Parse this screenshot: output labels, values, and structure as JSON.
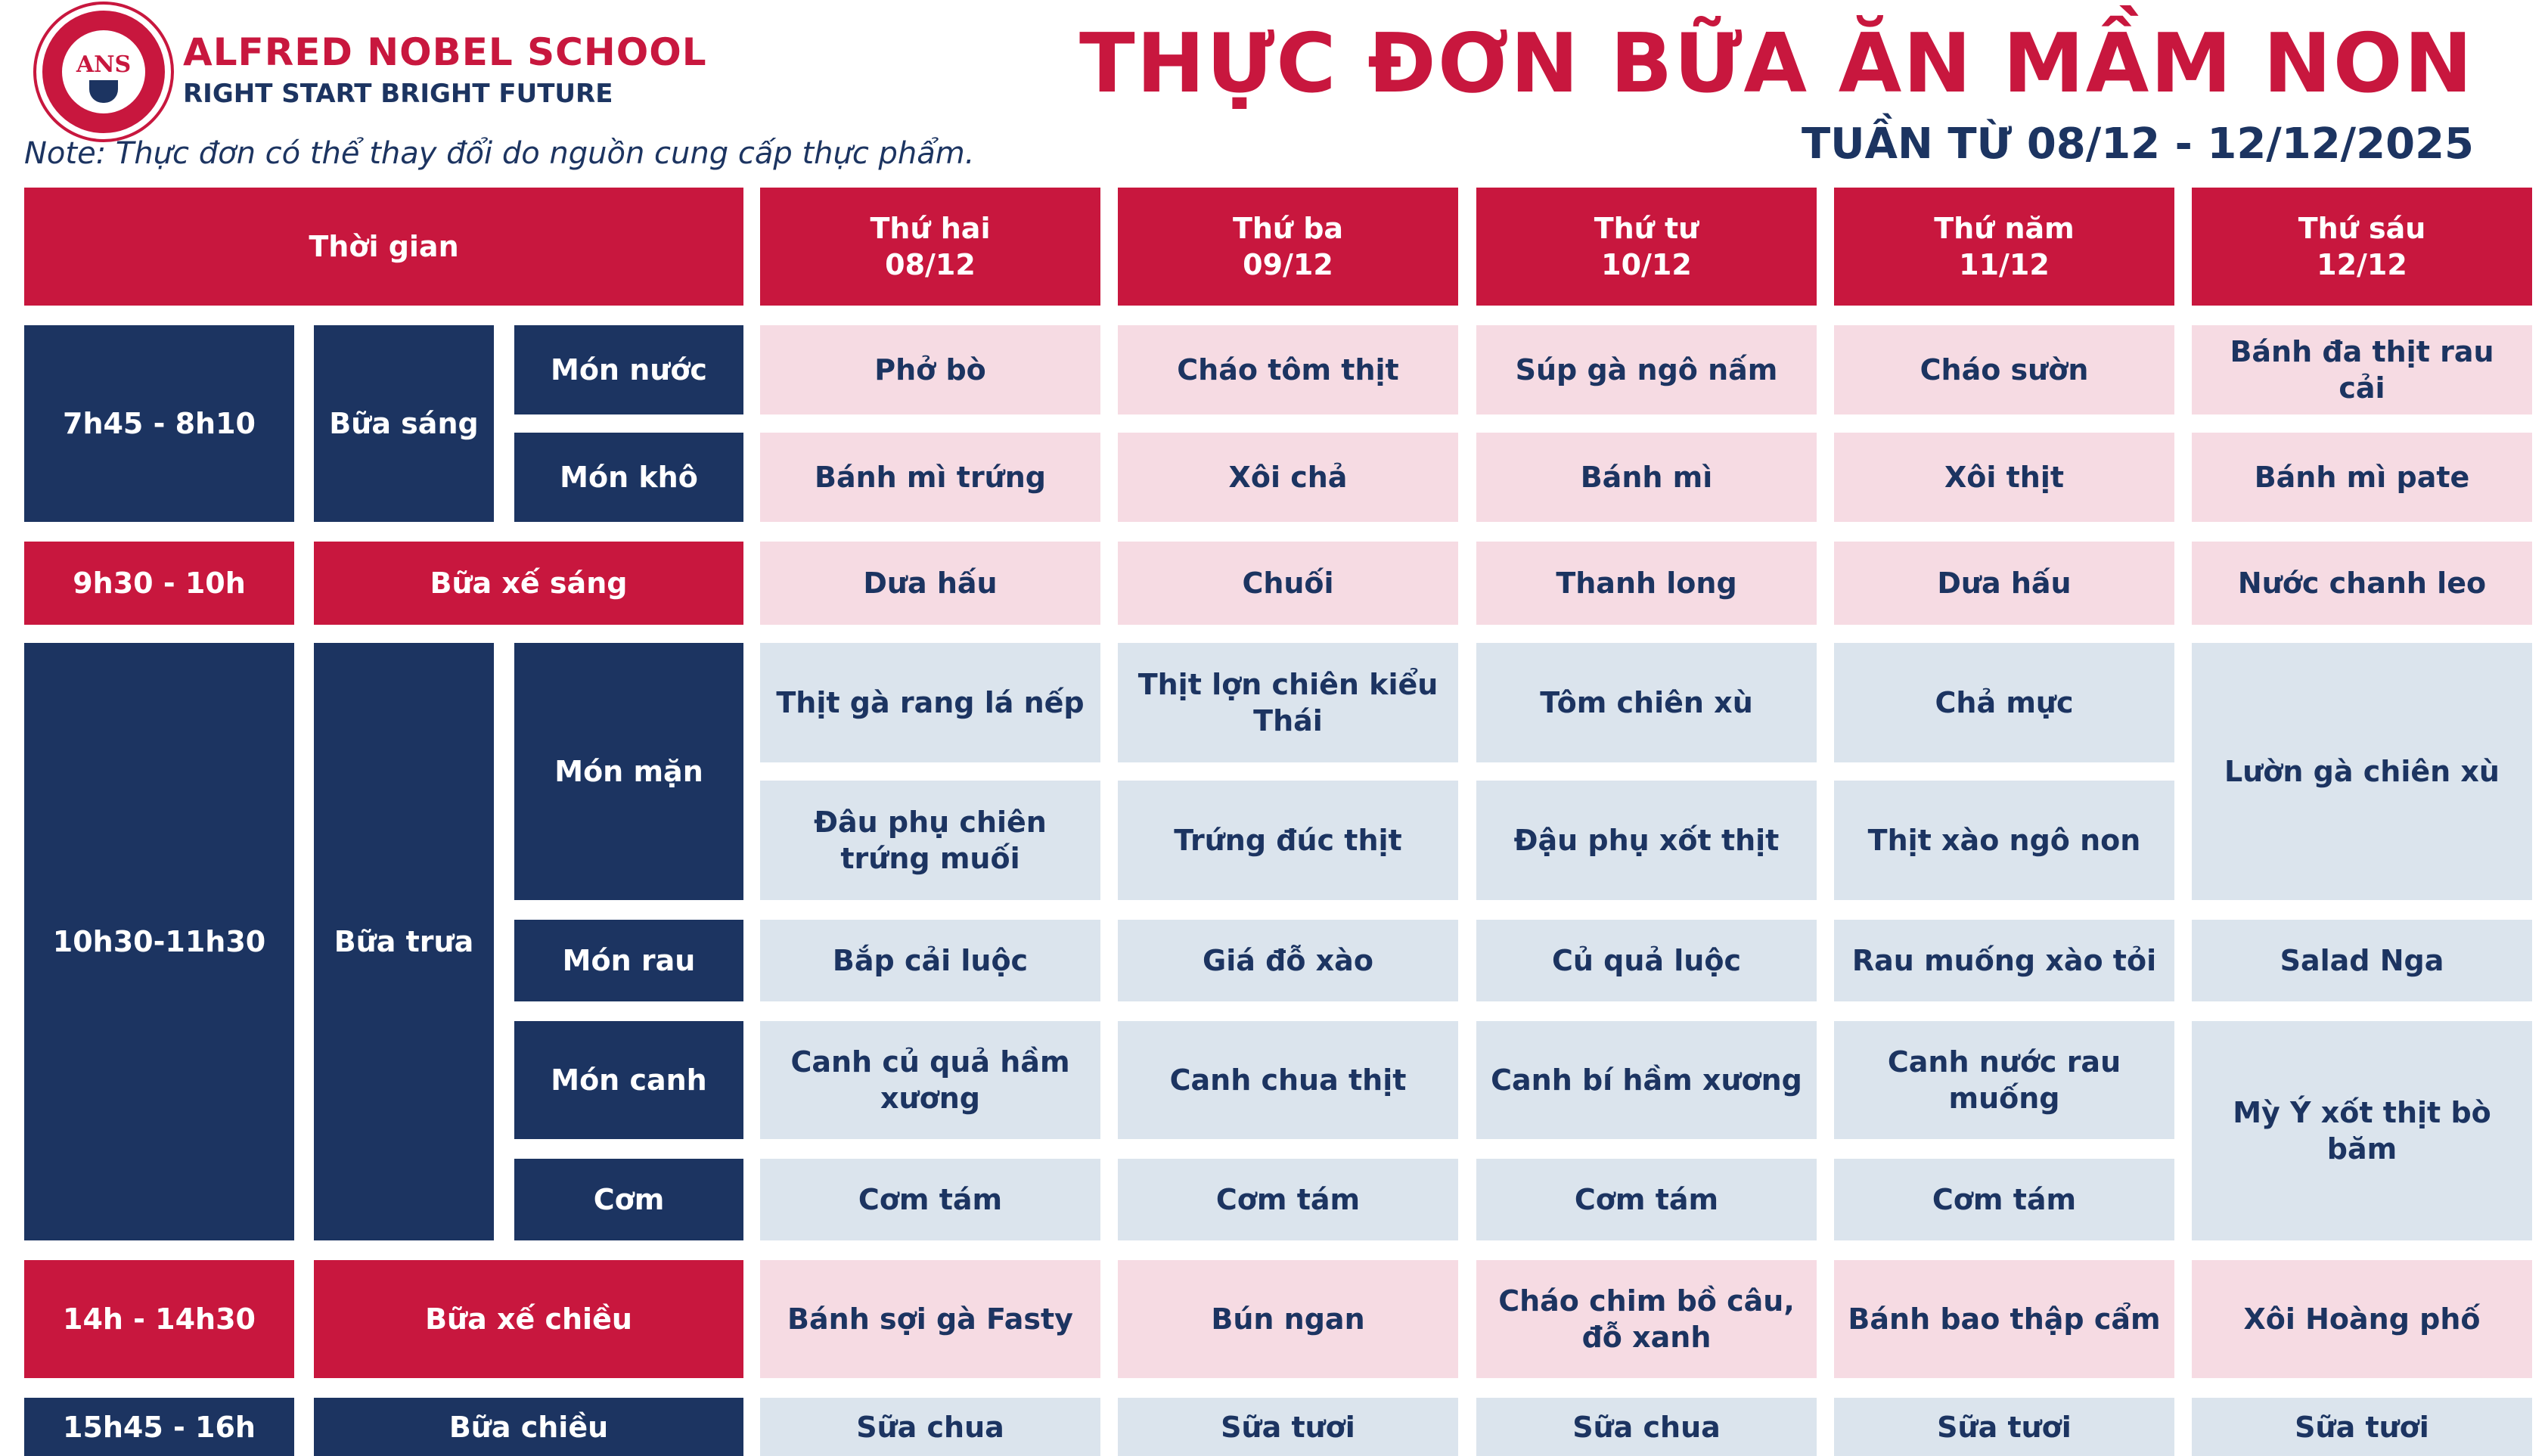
{
  "header": {
    "logo_text": "ANS",
    "school_name": "ALFRED NOBEL SCHOOL",
    "slogan": "RIGHT START  BRIGHT FUTURE",
    "note": "Note: Thực đơn có thể thay đổi do nguồn cung cấp thực phẩm.",
    "title": "THỰC ĐƠN BỮA ĂN MẦM NON",
    "week": "TUẦN TỪ 08/12 - 12/12/2025"
  },
  "table": {
    "time_header": "Thời gian",
    "days": [
      {
        "name": "Thứ hai",
        "date": "08/12"
      },
      {
        "name": "Thứ ba",
        "date": "09/12"
      },
      {
        "name": "Thứ tư",
        "date": "10/12"
      },
      {
        "name": "Thứ năm",
        "date": "11/12"
      },
      {
        "name": "Thứ sáu",
        "date": "12/12"
      }
    ],
    "times": [
      "7h45 - 8h10",
      "9h30 - 10h",
      "10h30-11h30",
      "14h - 14h30",
      "15h45 - 16h"
    ],
    "meals": [
      "Bữa sáng",
      "Bữa xế sáng",
      "Bữa trưa",
      "Bữa xế chiều",
      "Bữa chiều"
    ],
    "dish_types": [
      "Món nước",
      "Món khô",
      "Món mặn",
      "Món rau",
      "Món canh",
      "Cơm"
    ],
    "menu": {
      "mon_nuoc": [
        "Phở bò",
        "Cháo tôm thịt",
        "Súp gà ngô nấm",
        "Cháo sườn",
        "Bánh đa thịt rau cải"
      ],
      "mon_kho": [
        "Bánh mì trứng",
        "Xôi chả",
        "Bánh mì",
        "Xôi thịt",
        "Bánh mì pate"
      ],
      "xe_sang": [
        "Dưa hấu",
        "Chuối",
        "Thanh long",
        "Dưa hấu",
        "Nước chanh leo"
      ],
      "mon_man_1": [
        "Thịt gà rang lá nếp",
        "Thịt lợn chiên kiểu Thái",
        "Tôm chiên xù",
        "Chả mực"
      ],
      "mon_man_2": [
        "Đâu phụ chiên trứng muối",
        "Trứng đúc thịt",
        "Đậu phụ xốt thịt",
        "Thịt xào ngô non"
      ],
      "mon_man_fri": "Lườn gà chiên xù",
      "mon_rau": [
        "Bắp cải luộc",
        "Giá đỗ xào",
        "Củ quả luộc",
        "Rau muống xào tỏi",
        "Salad Nga"
      ],
      "mon_canh": [
        "Canh củ quả hầm xương",
        "Canh chua thịt",
        "Canh bí hầm xương",
        "Canh nước rau muống"
      ],
      "com": [
        "Cơm tám",
        "Cơm tám",
        "Cơm tám",
        "Cơm tám"
      ],
      "canh_com_fri": "Mỳ Ý xốt thịt bò băm",
      "xe_chieu": [
        "Bánh sợi gà Fasty",
        "Bún ngan",
        "Cháo chim bồ câu, đỗ xanh",
        "Bánh bao thập cẩm",
        "Xôi Hoàng phố"
      ],
      "bua_chieu": [
        "Sữa chua",
        "Sữa tươi",
        "Sữa chua",
        "Sữa tươi",
        "Sữa tươi"
      ]
    }
  },
  "colors": {
    "red": "#c8173e",
    "navy": "#1c3461",
    "pink": "#f6dbe3",
    "blue": "#dbe4ed"
  }
}
